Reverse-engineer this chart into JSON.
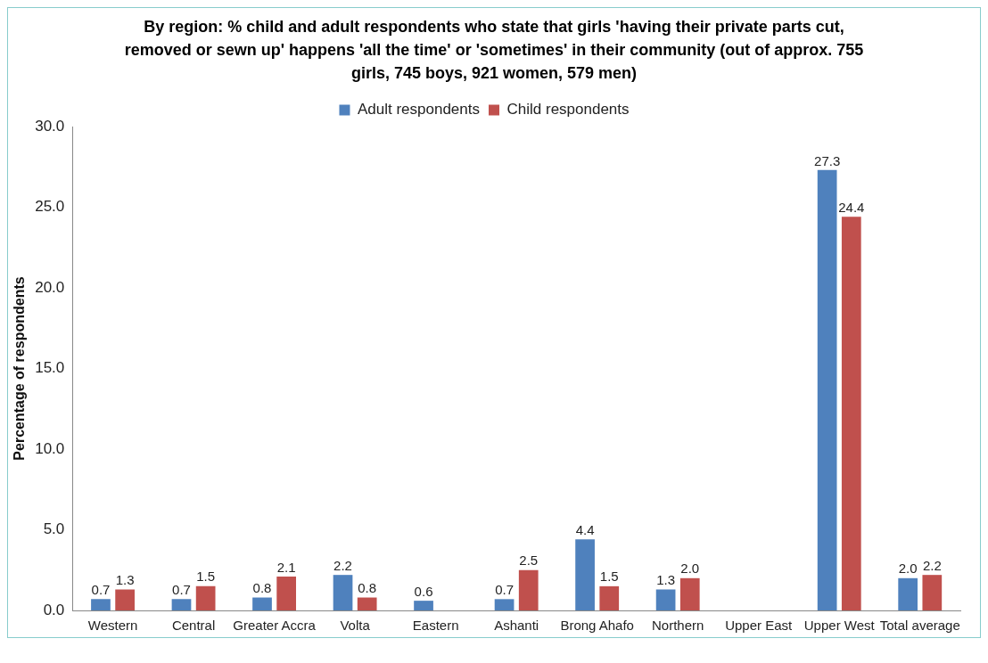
{
  "chart_data": {
    "type": "bar",
    "title": "By region: % child and adult respondents who state that girls 'having their private parts cut, removed or sewn up' happens 'all the time' or 'sometimes' in their community (out of approx. 755 girls, 745 boys, 921 women, 579 men)",
    "ylabel": "Percentage of respondents",
    "categories": [
      "Western",
      "Central",
      "Greater Accra",
      "Volta",
      "Eastern",
      "Ashanti",
      "Brong Ahafo",
      "Northern",
      "Upper East",
      "Upper West",
      "Total average"
    ],
    "series": [
      {
        "name": "Adult respondents",
        "color": "#4f81bd",
        "values": [
          0.7,
          0.7,
          0.8,
          2.2,
          0.6,
          0.7,
          4.4,
          1.3,
          null,
          27.3,
          2.0
        ],
        "value_labels": [
          "0.7",
          "0.7",
          "0.8",
          "2.2",
          "0.6",
          "0.7",
          "4.4",
          "1.3",
          null,
          "27.3",
          "2.0"
        ]
      },
      {
        "name": "Child respondents",
        "color": "#c0504d",
        "values": [
          1.3,
          1.5,
          2.1,
          0.8,
          null,
          2.5,
          1.5,
          2.0,
          null,
          24.4,
          2.2
        ],
        "value_labels": [
          "1.3",
          "1.5",
          "2.1",
          "0.8",
          null,
          "2.5",
          "1.5",
          "2.0",
          null,
          "24.4",
          "2.2"
        ]
      }
    ],
    "ylim": [
      0,
      30
    ],
    "yticks": [
      {
        "value": 0,
        "label": "0.0"
      },
      {
        "value": 5,
        "label": "5.0"
      },
      {
        "value": 10,
        "label": "10.0"
      },
      {
        "value": 15,
        "label": "15.0"
      },
      {
        "value": 20,
        "label": "20.0"
      },
      {
        "value": 25,
        "label": "25.0"
      },
      {
        "value": 30,
        "label": "30.0"
      }
    ],
    "grid": false,
    "legend": "top"
  }
}
